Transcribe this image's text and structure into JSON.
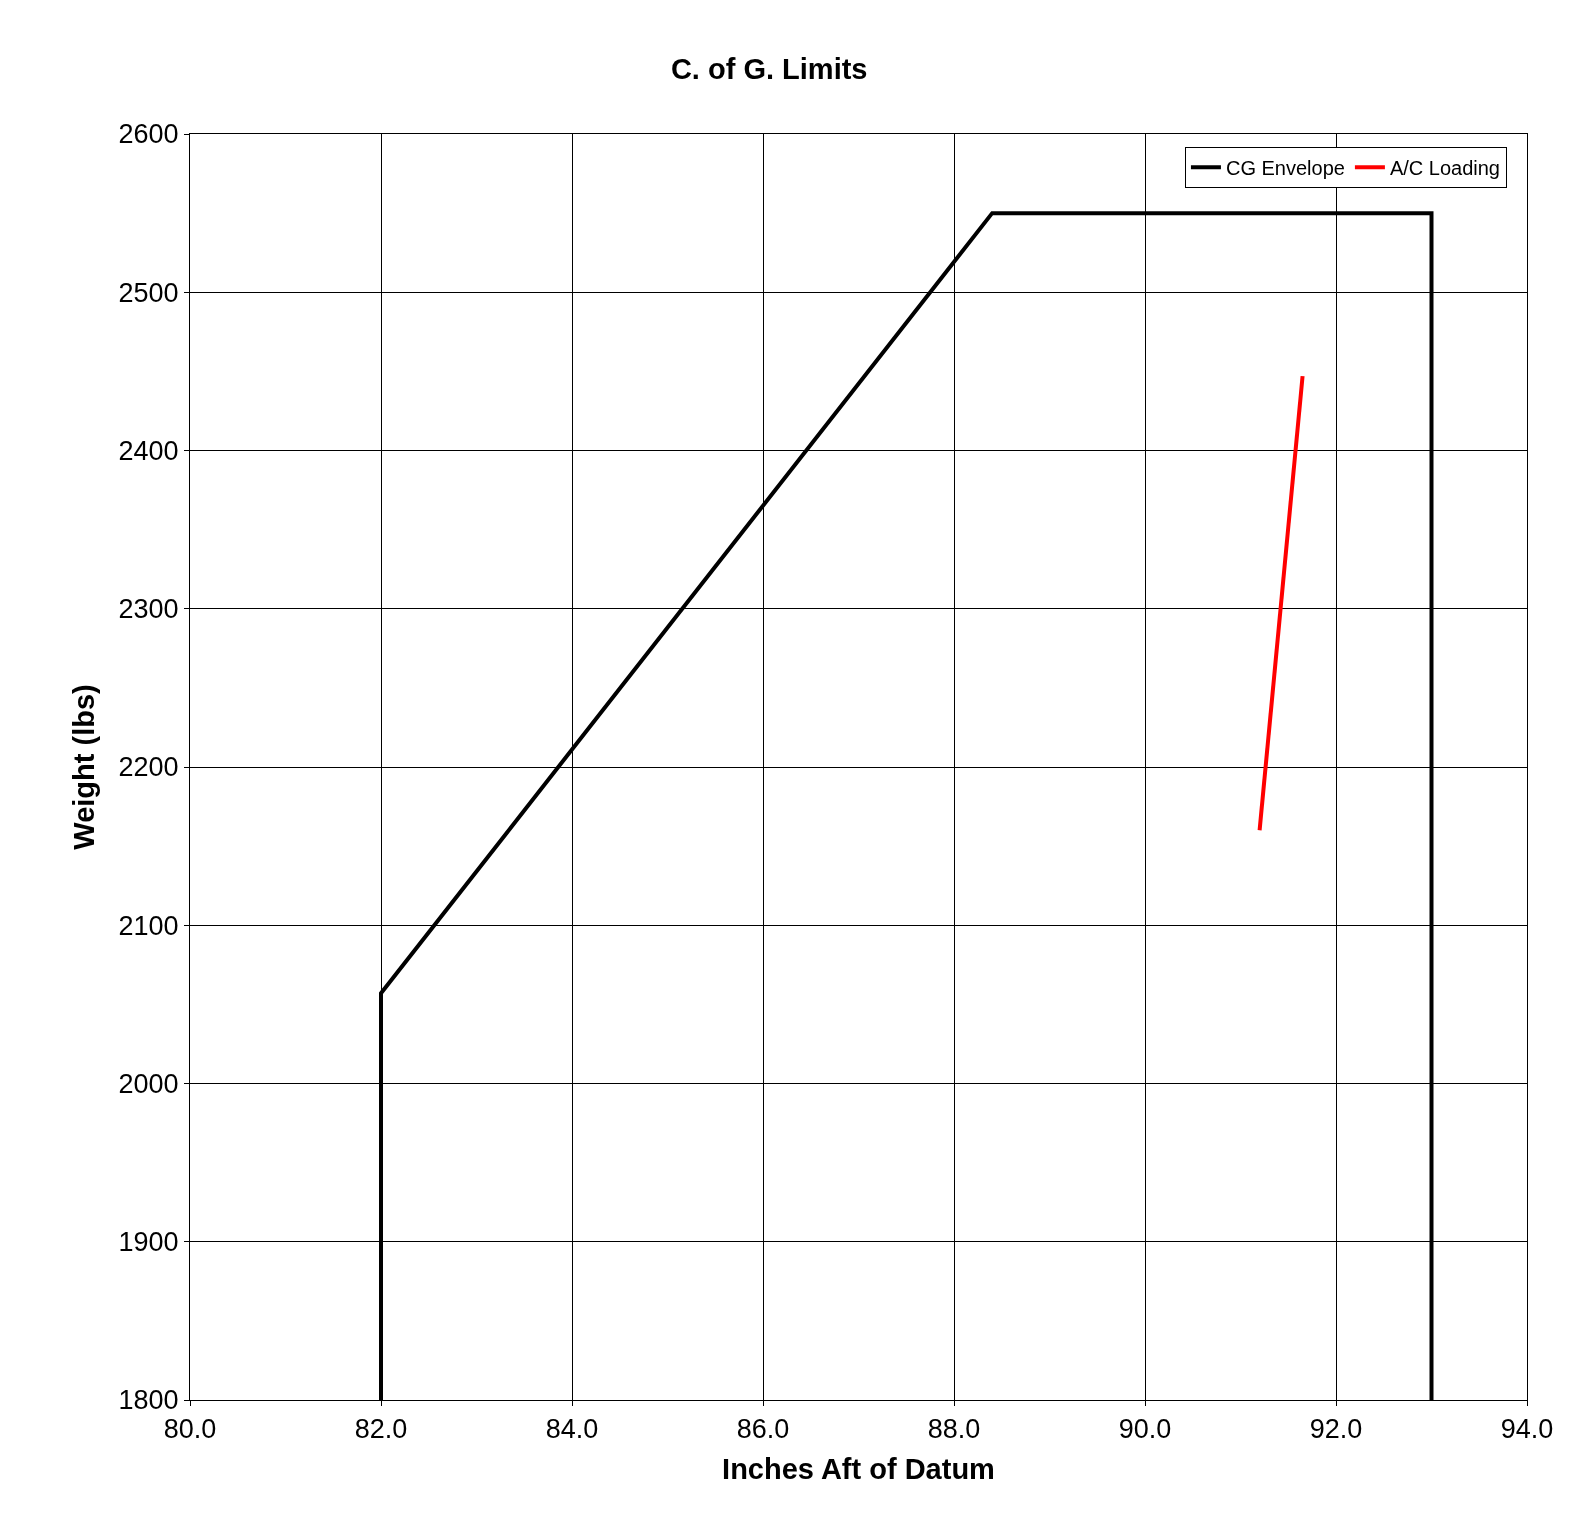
{
  "chart_data": {
    "type": "line",
    "title": "C. of G. Limits",
    "xlabel": "Inches Aft of Datum",
    "ylabel": "Weight (lbs)",
    "series": [
      {
        "name": "CG Envelope",
        "color": "#000000",
        "x": [
          82.0,
          82.0,
          88.4,
          93.0,
          93.0
        ],
        "values": [
          1800,
          2057,
          2550,
          2550,
          1800
        ]
      },
      {
        "name": "A/C Loading",
        "color": "#ff0000",
        "x": [
          91.2,
          91.65
        ],
        "values": [
          2160,
          2447
        ]
      }
    ],
    "xlim": [
      80,
      94
    ],
    "xticks": [
      {
        "value": 80,
        "label": "80.0"
      },
      {
        "value": 82,
        "label": "82.0"
      },
      {
        "value": 84,
        "label": "84.0"
      },
      {
        "value": 86,
        "label": "86.0"
      },
      {
        "value": 88,
        "label": "88.0"
      },
      {
        "value": 90,
        "label": "90.0"
      },
      {
        "value": 92,
        "label": "92.0"
      },
      {
        "value": 94,
        "label": "94.0"
      }
    ],
    "ylim": [
      1800,
      2600
    ],
    "yticks": [
      1800,
      1900,
      2000,
      2100,
      2200,
      2300,
      2400,
      2500,
      2600
    ],
    "grid": true,
    "legend": "top right",
    "marker": "none",
    "line_style": "solid"
  }
}
